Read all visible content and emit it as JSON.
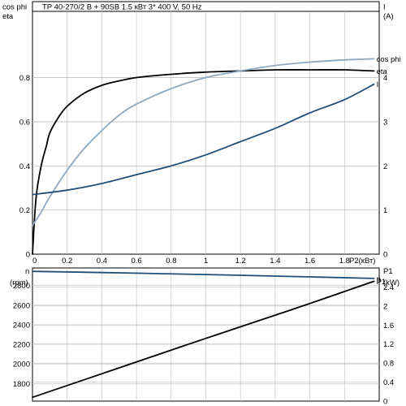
{
  "header": {
    "title": "TP 40-270/2 B + 90SB    1.5 кВт    3* 400 V, 50 Hz"
  },
  "colors": {
    "axis": "#000000",
    "grid": "#bdbdbd",
    "eta": "#000000",
    "cosphi": "#90a8c0",
    "current": "#1f4e79",
    "speed": "#1f4e79",
    "p1": "#000000"
  },
  "chart_data": [
    {
      "type": "line",
      "xlabel": "P2(кВт)",
      "x_ticks": [
        "0",
        "0.2",
        "0.4",
        "0.6",
        "0.8",
        "1",
        "1.2",
        "1.4",
        "1.6",
        "1.8"
      ],
      "xlim": [
        0,
        2.0
      ],
      "left_axis": {
        "label_line1": "cos phi",
        "label_line2": "eta",
        "ylim": [
          0,
          1.1
        ],
        "ticks": [
          "0",
          "0.2",
          "0.4",
          "0.6",
          "0.8"
        ]
      },
      "right_axis": {
        "label_line1": "I",
        "label_line2": "(A)",
        "ylim": [
          0,
          5.5
        ],
        "ticks": [
          "0",
          "1",
          "2",
          "3",
          "4"
        ]
      },
      "series": [
        {
          "name": "eta",
          "axis": "left",
          "x": [
            0.0,
            0.02,
            0.05,
            0.08,
            0.1,
            0.15,
            0.2,
            0.3,
            0.4,
            0.5,
            0.6,
            0.8,
            1.0,
            1.2,
            1.4,
            1.6,
            1.8,
            1.97
          ],
          "y": [
            0.0,
            0.25,
            0.4,
            0.49,
            0.55,
            0.62,
            0.67,
            0.73,
            0.765,
            0.785,
            0.8,
            0.815,
            0.825,
            0.83,
            0.835,
            0.835,
            0.835,
            0.83
          ]
        },
        {
          "name": "cos phi",
          "axis": "left",
          "x": [
            0.0,
            0.05,
            0.1,
            0.2,
            0.3,
            0.4,
            0.5,
            0.6,
            0.8,
            1.0,
            1.2,
            1.4,
            1.6,
            1.8,
            1.97
          ],
          "y": [
            0.13,
            0.19,
            0.26,
            0.38,
            0.48,
            0.56,
            0.63,
            0.68,
            0.75,
            0.8,
            0.83,
            0.855,
            0.87,
            0.88,
            0.885
          ]
        },
        {
          "name": "I",
          "axis": "right",
          "x": [
            0.0,
            0.2,
            0.4,
            0.6,
            0.8,
            1.0,
            1.2,
            1.4,
            1.6,
            1.8,
            1.97
          ],
          "y": [
            1.35,
            1.45,
            1.6,
            1.8,
            2.0,
            2.25,
            2.55,
            2.85,
            3.2,
            3.5,
            3.85
          ]
        }
      ]
    },
    {
      "type": "line",
      "xlim": [
        0,
        2.0
      ],
      "left_axis": {
        "label_line1": "n",
        "label_line2": "(rpm)",
        "ylim": [
          1620,
          2980
        ],
        "ticks": [
          "1800",
          "2000",
          "2200",
          "2400",
          "2600",
          "2800"
        ]
      },
      "right_axis": {
        "label_line1": "P1",
        "label_line2": "(kW)",
        "ylim": [
          0,
          2.8
        ],
        "ticks": [
          "0",
          "0.4",
          "0.8",
          "1.2",
          "1.6",
          "2",
          "2.4"
        ]
      },
      "series": [
        {
          "name": "n",
          "axis": "left",
          "x": [
            0.0,
            0.5,
            1.0,
            1.5,
            1.97
          ],
          "y": [
            2945,
            2930,
            2913,
            2893,
            2873
          ]
        },
        {
          "name": "P1",
          "axis": "right",
          "x": [
            0.0,
            0.5,
            1.0,
            1.5,
            1.97
          ],
          "y": [
            0.08,
            0.7,
            1.32,
            1.93,
            2.52
          ]
        }
      ]
    }
  ]
}
